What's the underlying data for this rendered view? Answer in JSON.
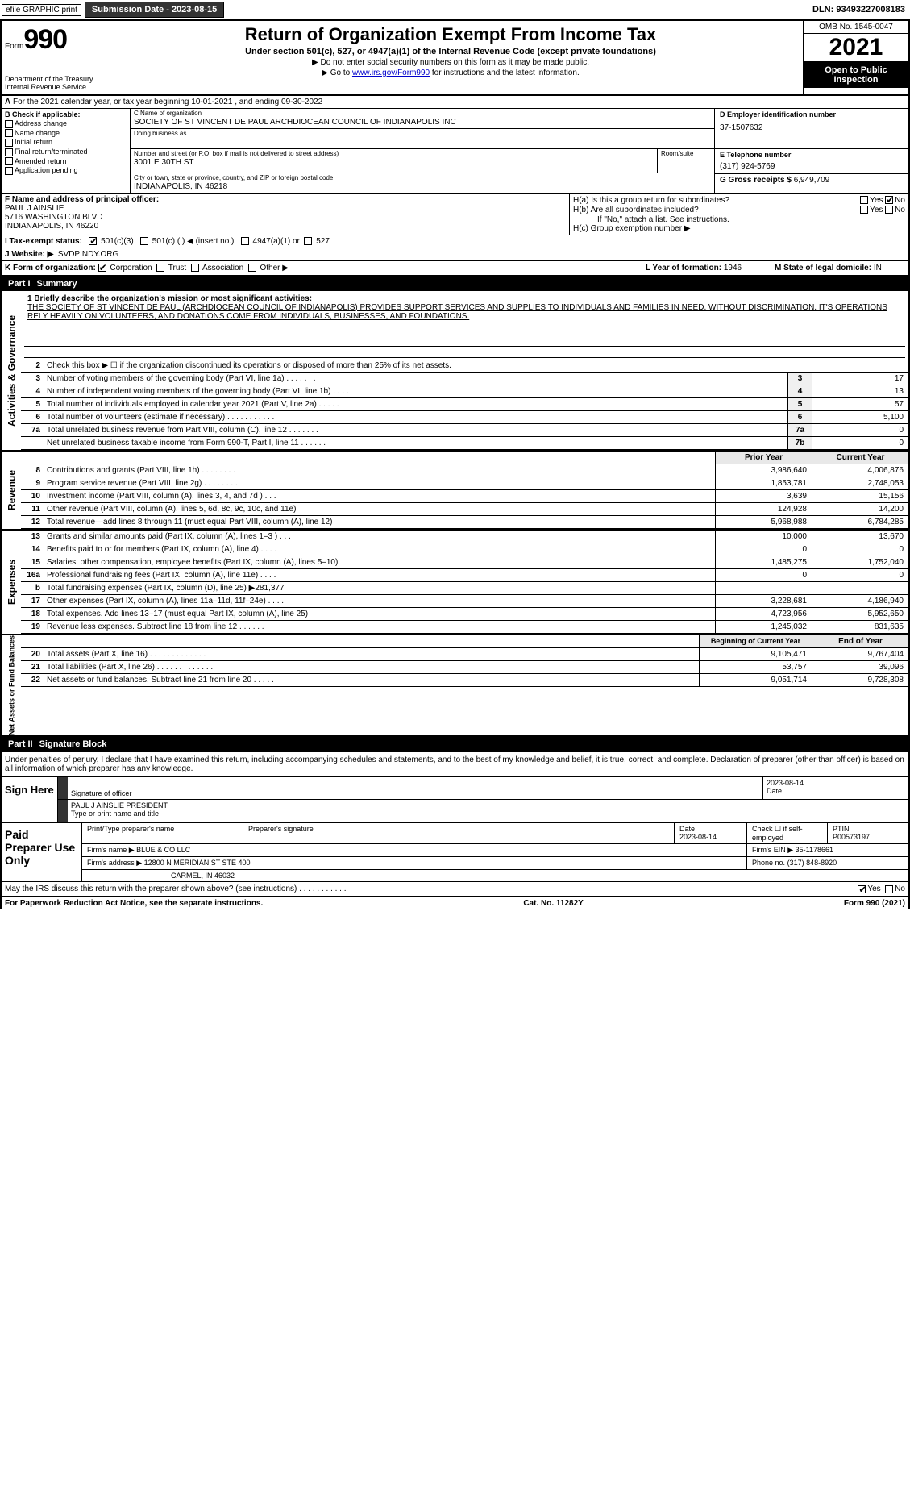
{
  "topbar": {
    "efile": "efile GRAPHIC print",
    "submission": "Submission Date - 2023-08-15",
    "dln": "DLN: 93493227008183"
  },
  "header": {
    "form_prefix": "Form",
    "form_number": "990",
    "title": "Return of Organization Exempt From Income Tax",
    "subtitle": "Under section 501(c), 527, or 4947(a)(1) of the Internal Revenue Code (except private foundations)",
    "note1": "▶ Do not enter social security numbers on this form as it may be made public.",
    "note2_prefix": "▶ Go to ",
    "note2_link": "www.irs.gov/Form990",
    "note2_suffix": " for instructions and the latest information.",
    "omb": "OMB No. 1545-0047",
    "year": "2021",
    "open_pub": "Open to Public Inspection",
    "dept": "Department of the Treasury Internal Revenue Service"
  },
  "a": {
    "text": "For the 2021 calendar year, or tax year beginning 10-01-2021    , and ending 09-30-2022"
  },
  "b": {
    "label": "B Check if applicable:",
    "opts": [
      "Address change",
      "Name change",
      "Initial return",
      "Final return/terminated",
      "Amended return",
      "Application pending"
    ]
  },
  "c": {
    "name_label": "C Name of organization",
    "name": "SOCIETY OF ST VINCENT DE PAUL ARCHDIOCEAN COUNCIL OF INDIANAPOLIS INC",
    "dba_label": "Doing business as",
    "street_label": "Number and street (or P.O. box if mail is not delivered to street address)",
    "room_label": "Room/suite",
    "street": "3001 E 30TH ST",
    "city_label": "City or town, state or province, country, and ZIP or foreign postal code",
    "city": "INDIANAPOLIS, IN  46218"
  },
  "d": {
    "label": "D Employer identification number",
    "val": "37-1507632"
  },
  "e": {
    "label": "E Telephone number",
    "val": "(317) 924-5769"
  },
  "g": {
    "label": "G Gross receipts $",
    "val": "6,949,709"
  },
  "f": {
    "label": "F Name and address of principal officer:",
    "name": "PAUL J AINSLIE",
    "addr1": "5716 WASHINGTON BLVD",
    "addr2": "INDIANAPOLIS, IN  46220"
  },
  "h": {
    "a_label": "H(a)  Is this a group return for subordinates?",
    "a_yes": "Yes",
    "a_no": "No",
    "b_label": "H(b)  Are all subordinates included?",
    "b_note": "If \"No,\" attach a list. See instructions.",
    "c_label": "H(c)  Group exemption number ▶"
  },
  "i": {
    "label": "I  Tax-exempt status:",
    "opt1": "501(c)(3)",
    "opt2": "501(c) (  ) ◀ (insert no.)",
    "opt3": "4947(a)(1) or",
    "opt4": "527"
  },
  "j": {
    "label": "J  Website: ▶",
    "val": "SVDPINDY.ORG"
  },
  "k": {
    "label": "K Form of organization:",
    "opts": [
      "Corporation",
      "Trust",
      "Association",
      "Other ▶"
    ]
  },
  "l": {
    "label": "L Year of formation:",
    "val": "1946"
  },
  "m": {
    "label": "M State of legal domicile:",
    "val": "IN"
  },
  "part1": {
    "label": "Part I",
    "title": "Summary"
  },
  "mission": {
    "label": "1  Briefly describe the organization's mission or most significant activities:",
    "text": "THE SOCIETY OF ST VINCENT DE PAUL (ARCHDIOCEAN COUNCIL OF INDIANAPOLIS) PROVIDES SUPPORT SERVICES AND SUPPLIES TO INDIVIDUALS AND FAMILIES IN NEED, WITHOUT DISCRIMINATION. IT'S OPERATIONS RELY HEAVILY ON VOLUNTEERS, AND DONATIONS COME FROM INDIVIDUALS, BUSINESSES, AND FOUNDATIONS."
  },
  "gov": {
    "line2": "Check this box ▶ ☐  if the organization discontinued its operations or disposed of more than 25% of its net assets.",
    "lines": [
      {
        "n": "3",
        "t": "Number of voting members of the governing body (Part VI, line 1a)  .    .    .    .    .    .    .",
        "box": "3",
        "v": "17"
      },
      {
        "n": "4",
        "t": "Number of independent voting members of the governing body (Part VI, line 1b)  .   .   .   .",
        "box": "4",
        "v": "13"
      },
      {
        "n": "5",
        "t": "Total number of individuals employed in calendar year 2021 (Part V, line 2a)  .   .   .   .   .",
        "box": "5",
        "v": "57"
      },
      {
        "n": "6",
        "t": "Total number of volunteers (estimate if necessary)    .    .    .    .    .    .    .    .    .    .    .",
        "box": "6",
        "v": "5,100"
      },
      {
        "n": "7a",
        "t": "Total unrelated business revenue from Part VIII, column (C), line 12  .   .   .   .   .   .   .",
        "box": "7a",
        "v": "0"
      },
      {
        "n": "",
        "t": "Net unrelated business taxable income from Form 990-T, Part I, line 11  .    .    .    .    .    .",
        "box": "7b",
        "v": "0"
      }
    ]
  },
  "cols": {
    "prior": "Prior Year",
    "current": "Current Year"
  },
  "revenue": [
    {
      "n": "8",
      "t": "Contributions and grants (Part VIII, line 1h)   .    .    .    .    .    .    .    .",
      "p": "3,986,640",
      "c": "4,006,876"
    },
    {
      "n": "9",
      "t": "Program service revenue (Part VIII, line 2g)   .    .    .    .    .    .    .    .",
      "p": "1,853,781",
      "c": "2,748,053"
    },
    {
      "n": "10",
      "t": "Investment income (Part VIII, column (A), lines 3, 4, and 7d )   .    .    .",
      "p": "3,639",
      "c": "15,156"
    },
    {
      "n": "11",
      "t": "Other revenue (Part VIII, column (A), lines 5, 6d, 8c, 9c, 10c, and 11e)",
      "p": "124,928",
      "c": "14,200"
    },
    {
      "n": "12",
      "t": "Total revenue—add lines 8 through 11 (must equal Part VIII, column (A), line 12)",
      "p": "5,968,988",
      "c": "6,784,285"
    }
  ],
  "expenses": [
    {
      "n": "13",
      "t": "Grants and similar amounts paid (Part IX, column (A), lines 1–3 )   .    .    .",
      "p": "10,000",
      "c": "13,670"
    },
    {
      "n": "14",
      "t": "Benefits paid to or for members (Part IX, column (A), line 4)  .   .   .   .",
      "p": "0",
      "c": "0"
    },
    {
      "n": "15",
      "t": "Salaries, other compensation, employee benefits (Part IX, column (A), lines 5–10)",
      "p": "1,485,275",
      "c": "1,752,040"
    },
    {
      "n": "16a",
      "t": "Professional fundraising fees (Part IX, column (A), line 11e)  .   .   .   .",
      "p": "0",
      "c": "0"
    },
    {
      "n": "b",
      "t": "Total fundraising expenses (Part IX, column (D), line 25) ▶281,377",
      "p": "",
      "c": ""
    },
    {
      "n": "17",
      "t": "Other expenses (Part IX, column (A), lines 11a–11d, 11f–24e)   .    .    .    .",
      "p": "3,228,681",
      "c": "4,186,940"
    },
    {
      "n": "18",
      "t": "Total expenses. Add lines 13–17 (must equal Part IX, column (A), line 25)",
      "p": "4,723,956",
      "c": "5,952,650"
    },
    {
      "n": "19",
      "t": "Revenue less expenses. Subtract line 18 from line 12  .   .   .   .   .   .",
      "p": "1,245,032",
      "c": "831,635"
    }
  ],
  "netcols": {
    "begin": "Beginning of Current Year",
    "end": "End of Year"
  },
  "net": [
    {
      "n": "20",
      "t": "Total assets (Part X, line 16)   .    .    .    .    .    .    .    .    .    .    .    .    .",
      "p": "9,105,471",
      "c": "9,767,404"
    },
    {
      "n": "21",
      "t": "Total liabilities (Part X, line 26)  .    .    .    .    .    .    .    .    .    .    .    .    .",
      "p": "53,757",
      "c": "39,096"
    },
    {
      "n": "22",
      "t": "Net assets or fund balances. Subtract line 21 from line 20  .   .   .   .   .",
      "p": "9,051,714",
      "c": "9,728,308"
    }
  ],
  "part2": {
    "label": "Part II",
    "title": "Signature Block"
  },
  "sig": {
    "intro": "Under penalties of perjury, I declare that I have examined this return, including accompanying schedules and statements, and to the best of my knowledge and belief, it is true, correct, and complete. Declaration of preparer (other than officer) is based on all information of which preparer has any knowledge.",
    "sign_here": "Sign Here",
    "sig_officer": "Signature of officer",
    "date": "Date",
    "date_val": "2023-08-14",
    "name": "PAUL J AINSLIE  PRESIDENT",
    "name_label": "Type or print name and title"
  },
  "paid": {
    "label": "Paid Preparer Use Only",
    "h1": "Print/Type preparer's name",
    "h2": "Preparer's signature",
    "h3": "Date",
    "h3v": "2023-08-14",
    "h4": "Check ☐ if self-employed",
    "h5": "PTIN",
    "h5v": "P00573197",
    "firm_label": "Firm's name    ▶",
    "firm": "BLUE & CO LLC",
    "ein_label": "Firm's EIN ▶",
    "ein": "35-1178661",
    "addr_label": "Firm's address ▶",
    "addr": "12800 N MERIDIAN ST STE 400",
    "addr2": "CARMEL, IN  46032",
    "phone_label": "Phone no.",
    "phone": "(317) 848-8920",
    "discuss": "May the IRS discuss this return with the preparer shown above? (see instructions)  .   .   .   .   .   .   .   .   .   .   .",
    "yes": "Yes",
    "no": "No"
  },
  "footer": {
    "left": "For Paperwork Reduction Act Notice, see the separate instructions.",
    "mid": "Cat. No. 11282Y",
    "right": "Form 990 (2021)"
  },
  "sidebars": {
    "gov": "Activities & Governance",
    "rev": "Revenue",
    "exp": "Expenses",
    "net": "Net Assets or Fund Balances"
  }
}
